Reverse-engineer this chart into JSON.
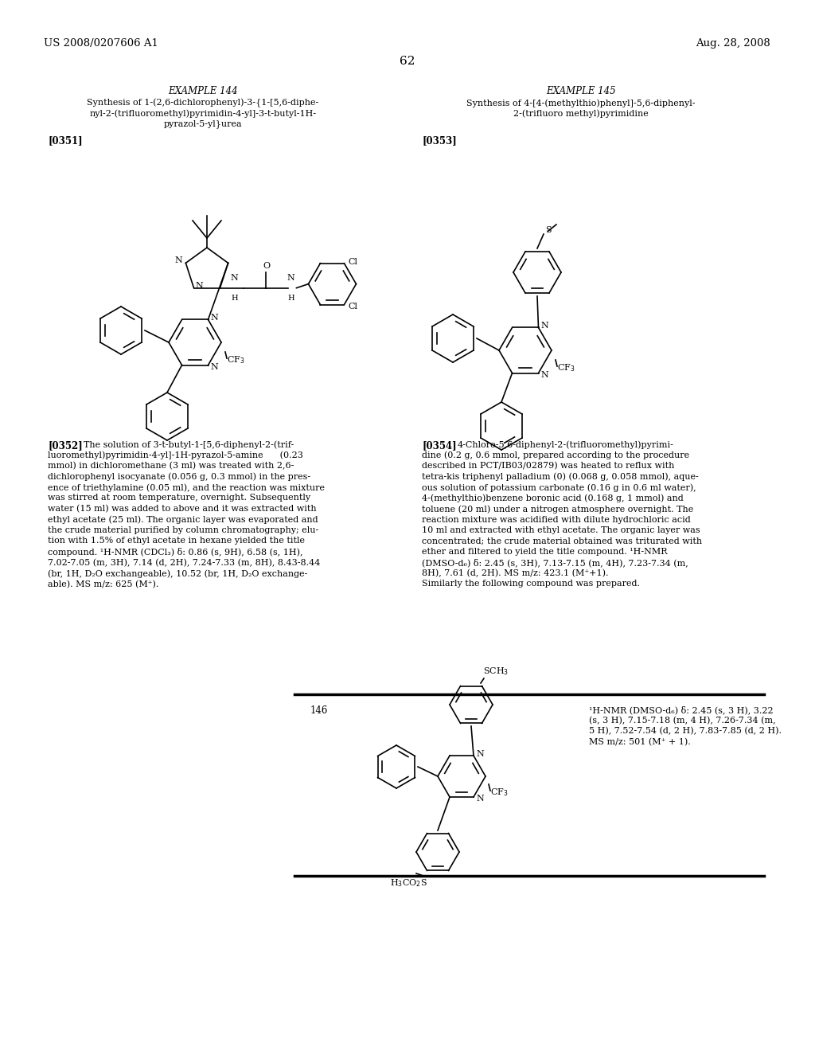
{
  "bg_color": "#ffffff",
  "header_left": "US 2008/0207606 A1",
  "header_right": "Aug. 28, 2008",
  "page_number": "62",
  "ex144_title": "EXAMPLE 144",
  "ex144_sub1": "Synthesis of 1-(2,6-dichlorophenyl)-3-{1-[5,6-diphe-",
  "ex144_sub2": "nyl-2-(trifluoromethyl)pyrimidin-4-yl]-3-t-butyl-1H-",
  "ex144_sub3": "pyrazol-5-yl}urea",
  "ex145_title": "EXAMPLE 145",
  "ex145_sub1": "Synthesis of 4-[4-(methylthio)phenyl]-5,6-diphenyl-",
  "ex145_sub2": "2-(trifluoro methyl)pyrimidine",
  "para0351": "[0351]",
  "para0353": "[0353]",
  "para0352_label": "[0352]",
  "para0352_lines": [
    "The solution of 3-t-butyl-1-[5,6-diphenyl-2-(trif-",
    "luoromethyl)pyrimidin-4-yl]-1H-pyrazol-5-amine      (0.23",
    "mmol) in dichloromethane (3 ml) was treated with 2,6-",
    "dichlorophenyl isocyanate (0.056 g, 0.3 mmol) in the pres-",
    "ence of triethylamine (0.05 ml), and the reaction was mixture",
    "was stirred at room temperature, overnight. Subsequently",
    "water (15 ml) was added to above and it was extracted with",
    "ethyl acetate (25 ml). The organic layer was evaporated and",
    "the crude material purified by column chromatography; elu-",
    "tion with 1.5% of ethyl acetate in hexane yielded the title",
    "compound. ¹H-NMR (CDCl₃) δ: 0.86 (s, 9H), 6.58 (s, 1H),",
    "7.02-7.05 (m, 3H), 7.14 (d, 2H), 7.24-7.33 (m, 8H), 8.43-8.44",
    "(br, 1H, D₂O exchangeable), 10.52 (br, 1H, D₂O exchange-",
    "able). MS m/z: 625 (M⁺)."
  ],
  "para0354_label": "[0354]",
  "para0354_lines": [
    "4-Chloro-5,6-diphenyl-2-(trifluoromethyl)pyrimi-",
    "dine (0.2 g, 0.6 mmol, prepared according to the procedure",
    "described in PCT/IB03/02879) was heated to reflux with",
    "tetra-kis triphenyl palladium (0) (0.068 g, 0.058 mmol), aque-",
    "ous solution of potassium carbonate (0.16 g in 0.6 ml water),",
    "4-(methylthio)benzene boronic acid (0.168 g, 1 mmol) and",
    "toluene (20 ml) under a nitrogen atmosphere overnight. The",
    "reaction mixture was acidified with dilute hydrochloric acid",
    "10 ml and extracted with ethyl acetate. The organic layer was",
    "concentrated; the crude material obtained was triturated with",
    "ether and filtered to yield the title compound. ¹H-NMR",
    "(DMSO-d₆) δ: 2.45 (s, 3H), 7.13-7.15 (m, 4H), 7.23-7.34 (m,",
    "8H), 7.61 (d, 2H). MS m/z: 423.1 (M⁺+1).",
    "Similarly the following compound was prepared."
  ],
  "cmpd_num": "146",
  "nmr_line1": "¹H-NMR (DMSO-d₆) δ: 2.45 (s, 3 H), 3.22",
  "nmr_line2": "(s, 3 H), 7.15-7.18 (m, 4 H), 7.26-7.34 (m,",
  "nmr_line3": "5 H), 7.52-7.54 (d, 2 H), 7.83-7.85 (d, 2 H).",
  "nmr_line4": "MS m/z: 501 (M⁺ + 1)."
}
